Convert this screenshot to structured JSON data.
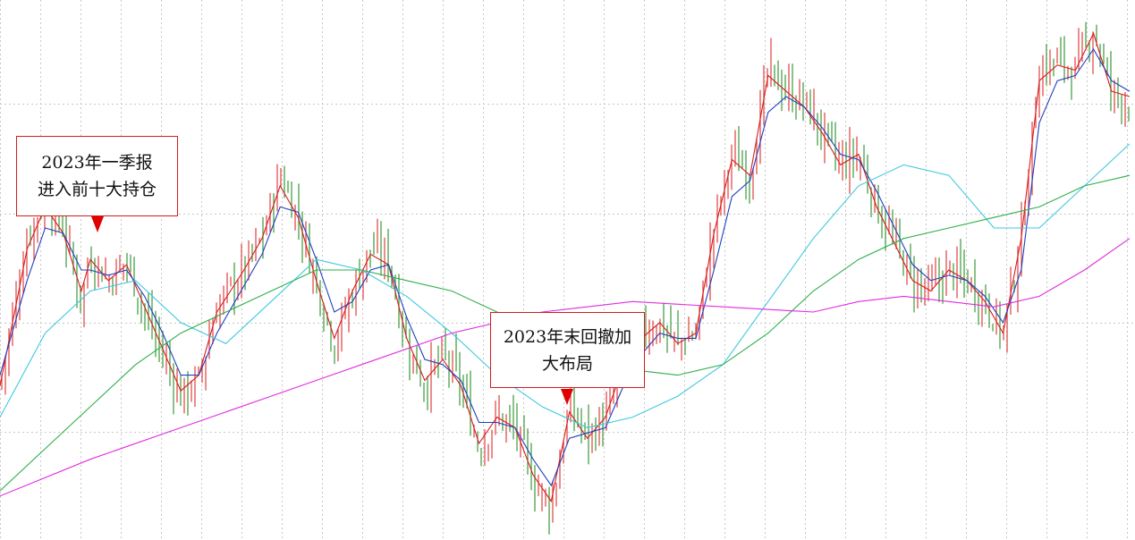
{
  "chart_data": {
    "type": "line",
    "title": "",
    "xlabel": "",
    "ylabel": "",
    "grid": true,
    "xlim": [
      0,
      250
    ],
    "ylim": [
      0,
      100
    ],
    "candles": {
      "up_color": "#e04040",
      "down_color": "#3a9a3a",
      "close": [
        [
          0,
          28
        ],
        [
          6,
          56
        ],
        [
          10,
          64
        ],
        [
          14,
          58
        ],
        [
          18,
          44
        ],
        [
          20,
          53
        ],
        [
          24,
          48
        ],
        [
          28,
          52
        ],
        [
          32,
          42
        ],
        [
          36,
          34
        ],
        [
          40,
          26
        ],
        [
          44,
          29
        ],
        [
          48,
          43
        ],
        [
          54,
          50
        ],
        [
          58,
          56
        ],
        [
          62,
          68
        ],
        [
          66,
          60
        ],
        [
          70,
          48
        ],
        [
          74,
          36
        ],
        [
          78,
          46
        ],
        [
          82,
          54
        ],
        [
          86,
          52
        ],
        [
          90,
          36
        ],
        [
          94,
          28
        ],
        [
          98,
          34
        ],
        [
          102,
          28
        ],
        [
          106,
          16
        ],
        [
          110,
          22
        ],
        [
          114,
          20
        ],
        [
          118,
          10
        ],
        [
          122,
          5
        ],
        [
          126,
          24
        ],
        [
          130,
          18
        ],
        [
          134,
          22
        ],
        [
          138,
          32
        ],
        [
          142,
          38
        ],
        [
          146,
          40
        ],
        [
          150,
          36
        ],
        [
          154,
          38
        ],
        [
          158,
          58
        ],
        [
          162,
          72
        ],
        [
          166,
          68
        ],
        [
          170,
          88
        ],
        [
          174,
          84
        ],
        [
          178,
          82
        ],
        [
          182,
          76
        ],
        [
          186,
          70
        ],
        [
          190,
          72
        ],
        [
          194,
          62
        ],
        [
          198,
          55
        ],
        [
          202,
          48
        ],
        [
          206,
          46
        ],
        [
          210,
          50
        ],
        [
          214,
          48
        ],
        [
          218,
          44
        ],
        [
          222,
          38
        ],
        [
          226,
          56
        ],
        [
          230,
          88
        ],
        [
          234,
          90
        ],
        [
          238,
          88
        ],
        [
          242,
          96
        ],
        [
          246,
          84
        ],
        [
          250,
          82
        ]
      ]
    },
    "series": [
      {
        "color": "#d81b1b",
        "values": [
          [
            0,
            28
          ],
          [
            6,
            54
          ],
          [
            10,
            62
          ],
          [
            14,
            57
          ],
          [
            18,
            46
          ],
          [
            20,
            52
          ],
          [
            24,
            48
          ],
          [
            28,
            51
          ],
          [
            32,
            43
          ],
          [
            36,
            35
          ],
          [
            40,
            27
          ],
          [
            44,
            30
          ],
          [
            48,
            42
          ],
          [
            54,
            50
          ],
          [
            58,
            56
          ],
          [
            62,
            66
          ],
          [
            66,
            60
          ],
          [
            70,
            48
          ],
          [
            74,
            37
          ],
          [
            78,
            46
          ],
          [
            82,
            53
          ],
          [
            86,
            51
          ],
          [
            90,
            37
          ],
          [
            94,
            29
          ],
          [
            98,
            33
          ],
          [
            102,
            28
          ],
          [
            106,
            17
          ],
          [
            110,
            22
          ],
          [
            114,
            20
          ],
          [
            118,
            11
          ],
          [
            122,
            6
          ],
          [
            126,
            23
          ],
          [
            130,
            18
          ],
          [
            134,
            22
          ],
          [
            138,
            32
          ],
          [
            142,
            37
          ],
          [
            146,
            40
          ],
          [
            150,
            36
          ],
          [
            154,
            38
          ],
          [
            158,
            57
          ],
          [
            162,
            71
          ],
          [
            166,
            68
          ],
          [
            170,
            87
          ],
          [
            174,
            84
          ],
          [
            178,
            81
          ],
          [
            182,
            76
          ],
          [
            186,
            70
          ],
          [
            190,
            72
          ],
          [
            194,
            62
          ],
          [
            198,
            55
          ],
          [
            202,
            48
          ],
          [
            206,
            46
          ],
          [
            210,
            50
          ],
          [
            214,
            48
          ],
          [
            218,
            44
          ],
          [
            222,
            38
          ],
          [
            226,
            56
          ],
          [
            230,
            86
          ],
          [
            234,
            89
          ],
          [
            238,
            88
          ],
          [
            242,
            95
          ],
          [
            246,
            84
          ],
          [
            250,
            83
          ]
        ]
      },
      {
        "color": "#1f3fbf",
        "values": [
          [
            0,
            30
          ],
          [
            6,
            48
          ],
          [
            10,
            58
          ],
          [
            14,
            57
          ],
          [
            18,
            50
          ],
          [
            20,
            50
          ],
          [
            24,
            49
          ],
          [
            28,
            50
          ],
          [
            32,
            45
          ],
          [
            36,
            38
          ],
          [
            40,
            30
          ],
          [
            44,
            30
          ],
          [
            48,
            38
          ],
          [
            54,
            47
          ],
          [
            58,
            53
          ],
          [
            62,
            62
          ],
          [
            66,
            61
          ],
          [
            70,
            52
          ],
          [
            74,
            42
          ],
          [
            78,
            44
          ],
          [
            82,
            50
          ],
          [
            86,
            51
          ],
          [
            90,
            41
          ],
          [
            94,
            33
          ],
          [
            98,
            32
          ],
          [
            102,
            29
          ],
          [
            106,
            21
          ],
          [
            110,
            21
          ],
          [
            114,
            20
          ],
          [
            118,
            14
          ],
          [
            122,
            9
          ],
          [
            126,
            18
          ],
          [
            130,
            19
          ],
          [
            134,
            20
          ],
          [
            138,
            28
          ],
          [
            142,
            34
          ],
          [
            146,
            38
          ],
          [
            150,
            37
          ],
          [
            154,
            37
          ],
          [
            158,
            50
          ],
          [
            162,
            64
          ],
          [
            166,
            67
          ],
          [
            170,
            80
          ],
          [
            174,
            83
          ],
          [
            178,
            81
          ],
          [
            182,
            77
          ],
          [
            186,
            72
          ],
          [
            190,
            71
          ],
          [
            194,
            65
          ],
          [
            198,
            58
          ],
          [
            202,
            51
          ],
          [
            206,
            48
          ],
          [
            210,
            49
          ],
          [
            214,
            48
          ],
          [
            218,
            45
          ],
          [
            222,
            40
          ],
          [
            226,
            50
          ],
          [
            230,
            78
          ],
          [
            234,
            86
          ],
          [
            238,
            87
          ],
          [
            242,
            92
          ],
          [
            246,
            86
          ],
          [
            250,
            84
          ]
        ]
      },
      {
        "color": "#3fc8e0",
        "values": [
          [
            0,
            22
          ],
          [
            10,
            38
          ],
          [
            20,
            46
          ],
          [
            30,
            48
          ],
          [
            40,
            40
          ],
          [
            50,
            36
          ],
          [
            60,
            44
          ],
          [
            70,
            52
          ],
          [
            80,
            50
          ],
          [
            90,
            45
          ],
          [
            100,
            38
          ],
          [
            110,
            30
          ],
          [
            120,
            24
          ],
          [
            130,
            20
          ],
          [
            140,
            22
          ],
          [
            150,
            26
          ],
          [
            160,
            32
          ],
          [
            170,
            44
          ],
          [
            180,
            56
          ],
          [
            190,
            66
          ],
          [
            200,
            70
          ],
          [
            210,
            68
          ],
          [
            220,
            58
          ],
          [
            230,
            58
          ],
          [
            240,
            66
          ],
          [
            250,
            74
          ]
        ]
      },
      {
        "color": "#2fae4a",
        "values": [
          [
            0,
            8
          ],
          [
            10,
            16
          ],
          [
            20,
            24
          ],
          [
            30,
            32
          ],
          [
            40,
            38
          ],
          [
            50,
            42
          ],
          [
            60,
            46
          ],
          [
            70,
            50
          ],
          [
            80,
            50
          ],
          [
            90,
            48
          ],
          [
            100,
            46
          ],
          [
            110,
            42
          ],
          [
            120,
            38
          ],
          [
            130,
            34
          ],
          [
            140,
            31
          ],
          [
            150,
            30
          ],
          [
            160,
            32
          ],
          [
            170,
            38
          ],
          [
            180,
            46
          ],
          [
            190,
            52
          ],
          [
            200,
            56
          ],
          [
            210,
            58
          ],
          [
            220,
            60
          ],
          [
            230,
            62
          ],
          [
            240,
            66
          ],
          [
            250,
            68
          ]
        ]
      },
      {
        "color": "#e02be0",
        "values": [
          [
            0,
            7
          ],
          [
            20,
            14
          ],
          [
            40,
            20
          ],
          [
            60,
            26
          ],
          [
            80,
            32
          ],
          [
            100,
            38
          ],
          [
            120,
            42
          ],
          [
            140,
            44
          ],
          [
            160,
            43
          ],
          [
            180,
            42
          ],
          [
            190,
            44
          ],
          [
            200,
            45
          ],
          [
            210,
            44
          ],
          [
            220,
            43
          ],
          [
            230,
            45
          ],
          [
            240,
            50
          ],
          [
            250,
            56
          ]
        ]
      }
    ],
    "annotations": [
      {
        "lines": [
          "2023年一季报",
          "进入前十大持仓"
        ],
        "x": 21,
        "y": 57
      },
      {
        "lines": [
          "2023年末回撤加",
          "大布局"
        ],
        "x": 126,
        "y": 28
      }
    ]
  }
}
